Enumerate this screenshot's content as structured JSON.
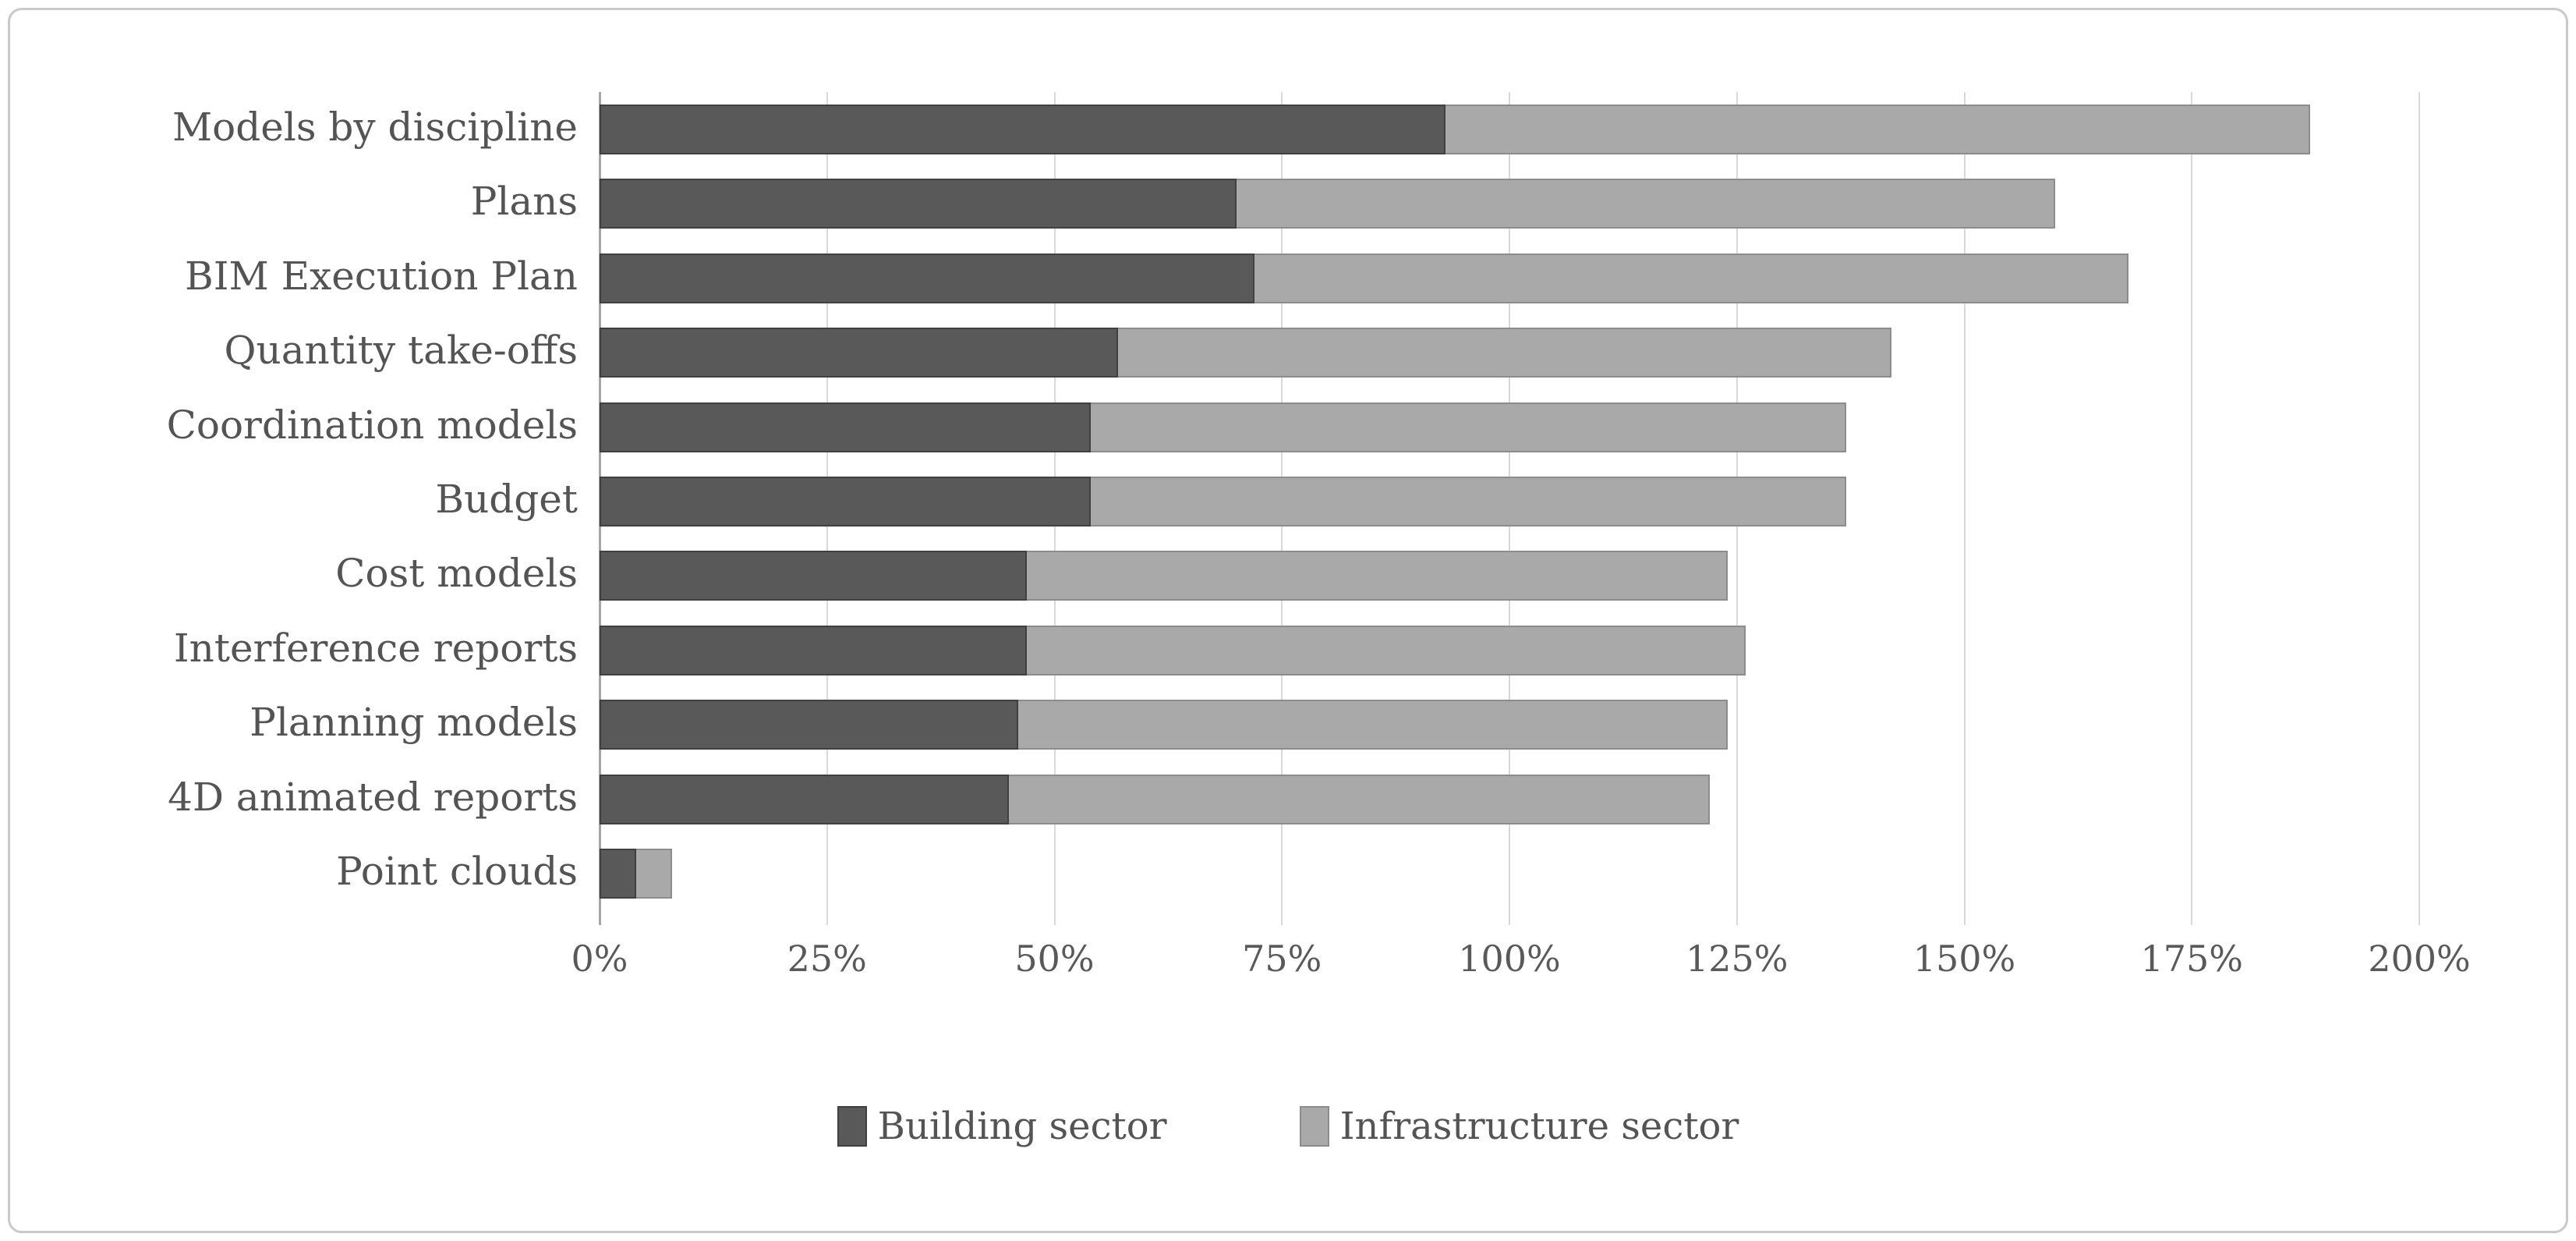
{
  "chart_data": {
    "type": "bar",
    "orientation": "horizontal",
    "stacked": true,
    "title": "",
    "xlabel": "",
    "ylabel": "",
    "categories": [
      "Models by discipline",
      "Plans",
      "BIM Execution Plan",
      "Quantity take-offs",
      "Coordination models",
      "Budget",
      "Cost models",
      "Interference reports",
      "Planning models",
      "4D animated reports",
      "Point clouds"
    ],
    "series": [
      {
        "name": "Building sector",
        "color": "#595959",
        "values": [
          93,
          70,
          72,
          57,
          54,
          54,
          47,
          47,
          46,
          45,
          4
        ]
      },
      {
        "name": "Infrastructure sector",
        "color": "#a9a9a9",
        "values": [
          95,
          90,
          96,
          85,
          83,
          83,
          77,
          79,
          78,
          77,
          4
        ]
      }
    ],
    "totals": [
      188,
      160,
      168,
      142,
      137,
      137,
      124,
      126,
      124,
      122,
      8
    ],
    "x_axis": {
      "min": 0,
      "max": 200,
      "unit": "%",
      "ticks": [
        "0%",
        "25%",
        "50%",
        "75%",
        "100%",
        "125%",
        "150%",
        "175%",
        "200%"
      ]
    },
    "grid": "vertical",
    "legend_position": "bottom",
    "colors": {
      "gridline": "#d9d9d9",
      "axis_line": "#a6a6a6",
      "text": "#595959",
      "frame_border": "#c9c9c9",
      "background": "#ffffff"
    }
  }
}
